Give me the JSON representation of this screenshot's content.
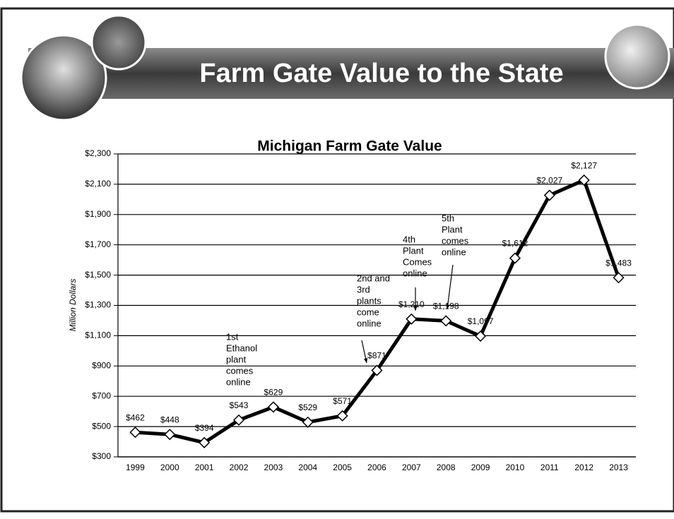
{
  "slide_title": "Farm Gate Value to the State",
  "chart_data": {
    "type": "line",
    "title": "Michigan Farm Gate Value",
    "y_label": "Million Dollars",
    "categories": [
      "1999",
      "2000",
      "2001",
      "2002",
      "2003",
      "2004",
      "2005",
      "2006",
      "2007",
      "2008",
      "2009",
      "2010",
      "2011",
      "2012",
      "2013"
    ],
    "series": [
      {
        "name": "Michigan Farm Gate Value",
        "color": "#000000",
        "values": [
          462,
          448,
          394,
          543,
          629,
          529,
          571,
          871,
          1210,
          1198,
          1097,
          1612,
          2027,
          2127,
          1483
        ],
        "value_labels": [
          "$462",
          "$448",
          "$394",
          "$543",
          "$629",
          "$529",
          "$571",
          "$871",
          "$1,210",
          "$1,198",
          "$1,097",
          "$1,612",
          "$2,027",
          "$2,127",
          "$1,483"
        ]
      }
    ],
    "ylim": [
      300,
      2300
    ],
    "yticks": [
      {
        "value": 300,
        "label": "$300"
      },
      {
        "value": 500,
        "label": "$500"
      },
      {
        "value": 700,
        "label": "$700"
      },
      {
        "value": 900,
        "label": "$900"
      },
      {
        "value": 1100,
        "label": "$1,100"
      },
      {
        "value": 1300,
        "label": "$1,300"
      },
      {
        "value": 1500,
        "label": "$1,500"
      },
      {
        "value": 1700,
        "label": "$1,700"
      },
      {
        "value": 1900,
        "label": "$1,900"
      },
      {
        "value": 2100,
        "label": "$2,100"
      },
      {
        "value": 2300,
        "label": "$2,300"
      }
    ],
    "grid": true,
    "annotations": [
      {
        "lines": [
          "1st",
          "Ethanol",
          "plant",
          "comes",
          "online"
        ]
      },
      {
        "lines": [
          "2nd and",
          "3rd",
          "plants",
          "come",
          "online"
        ]
      },
      {
        "lines": [
          "4th",
          "Plant",
          "Comes",
          "online"
        ]
      },
      {
        "lines": [
          "5th",
          "Plant",
          "comes",
          "online"
        ]
      }
    ]
  }
}
